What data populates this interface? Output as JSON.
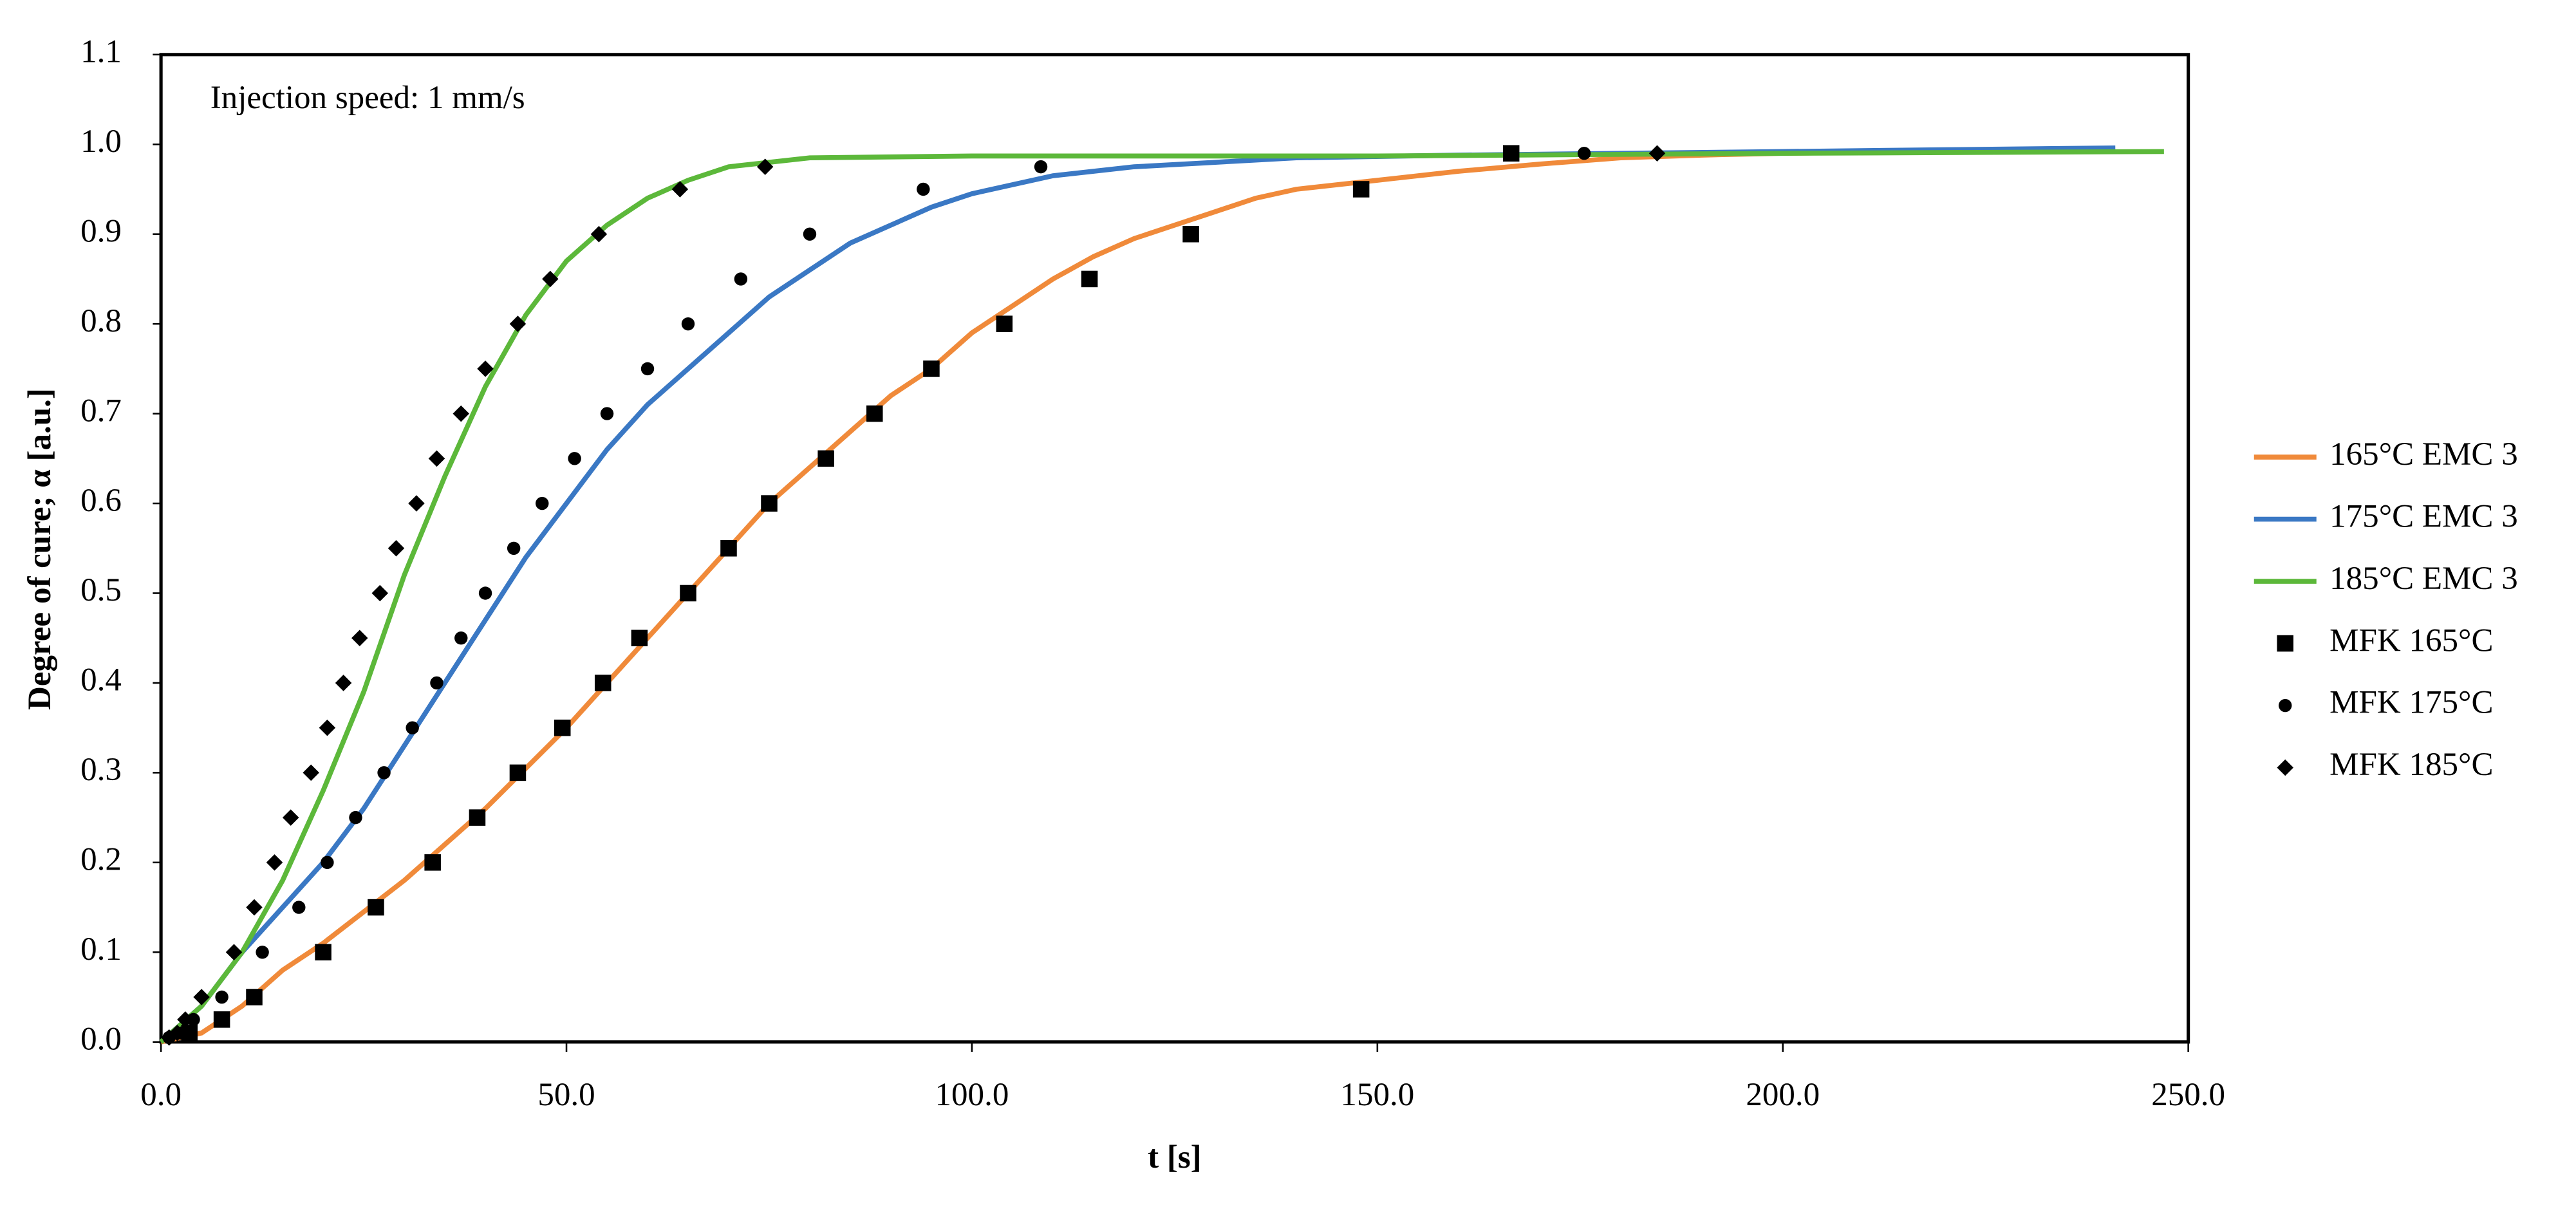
{
  "chart_data": {
    "type": "line",
    "annotation": "Injection speed: 1 mm/s",
    "xlabel": "t [s]",
    "ylabel": "Degree of cure; α [a.u.]",
    "xlim": [
      0,
      250
    ],
    "ylim": [
      0,
      1.1
    ],
    "xticks": [
      {
        "value": 0,
        "label": "0.0"
      },
      {
        "value": 50,
        "label": "50.0"
      },
      {
        "value": 100,
        "label": "100.0"
      },
      {
        "value": 150,
        "label": "150.0"
      },
      {
        "value": 200,
        "label": "200.0"
      },
      {
        "value": 250,
        "label": "250.0"
      }
    ],
    "yticks": [
      {
        "value": 0,
        "label": "0.0"
      },
      {
        "value": 0.1,
        "label": "0.1"
      },
      {
        "value": 0.2,
        "label": "0.2"
      },
      {
        "value": 0.3,
        "label": "0.3"
      },
      {
        "value": 0.4,
        "label": "0.4"
      },
      {
        "value": 0.5,
        "label": "0.5"
      },
      {
        "value": 0.6,
        "label": "0.6"
      },
      {
        "value": 0.7,
        "label": "0.7"
      },
      {
        "value": 0.8,
        "label": "0.8"
      },
      {
        "value": 0.9,
        "label": "0.9"
      },
      {
        "value": 1,
        "label": "1.0"
      },
      {
        "value": 1.1,
        "label": "1.1"
      }
    ],
    "legend": "right",
    "series": [
      {
        "name": "165°C EMC 3",
        "color": "#f08a3a",
        "mode": "line",
        "x": [
          0,
          5,
          10,
          15,
          20,
          25,
          30,
          35,
          40,
          45,
          50,
          55,
          60,
          65,
          70,
          75,
          80,
          85,
          90,
          95,
          100,
          105,
          110,
          115,
          120,
          125,
          130,
          135,
          140,
          150,
          160,
          170,
          180,
          190,
          200,
          220,
          240
        ],
        "values": [
          0,
          0.01,
          0.04,
          0.08,
          0.11,
          0.145,
          0.18,
          0.22,
          0.26,
          0.305,
          0.35,
          0.4,
          0.45,
          0.5,
          0.55,
          0.6,
          0.64,
          0.68,
          0.72,
          0.75,
          0.79,
          0.82,
          0.85,
          0.875,
          0.895,
          0.91,
          0.925,
          0.94,
          0.95,
          0.96,
          0.97,
          0.978,
          0.985,
          0.988,
          0.99,
          0.992,
          0.994
        ]
      },
      {
        "name": "175°C EMC 3",
        "color": "#3a78c4",
        "mode": "line",
        "x": [
          0,
          5,
          10,
          15,
          20,
          25,
          30,
          35,
          40,
          45,
          50,
          55,
          60,
          65,
          70,
          75,
          80,
          85,
          90,
          95,
          100,
          110,
          120,
          130,
          140,
          160,
          180,
          200,
          220,
          241
        ],
        "values": [
          0,
          0.04,
          0.1,
          0.15,
          0.2,
          0.26,
          0.33,
          0.4,
          0.47,
          0.54,
          0.6,
          0.66,
          0.71,
          0.75,
          0.79,
          0.83,
          0.86,
          0.89,
          0.91,
          0.93,
          0.945,
          0.965,
          0.975,
          0.98,
          0.985,
          0.988,
          0.99,
          0.992,
          0.994,
          0.996
        ]
      },
      {
        "name": "185°C EMC 3",
        "color": "#5cb83a",
        "mode": "line",
        "x": [
          0,
          5,
          10,
          15,
          20,
          25,
          30,
          35,
          40,
          45,
          50,
          55,
          60,
          65,
          70,
          80,
          100,
          150,
          200,
          247
        ],
        "values": [
          0,
          0.04,
          0.1,
          0.18,
          0.28,
          0.39,
          0.52,
          0.63,
          0.73,
          0.81,
          0.87,
          0.91,
          0.94,
          0.96,
          0.975,
          0.985,
          0.987,
          0.987,
          0.99,
          0.992
        ]
      },
      {
        "name": "MFK 165°C",
        "color": "#000000",
        "mode": "markers",
        "marker": "square",
        "x": [
          3.5,
          7.5,
          11.5,
          20,
          26.5,
          33.5,
          39,
          44,
          49.5,
          54.5,
          59,
          65,
          70,
          75,
          82,
          88,
          95,
          104,
          114.5,
          127,
          148,
          166.5
        ],
        "values": [
          0.01,
          0.025,
          0.05,
          0.1,
          0.15,
          0.2,
          0.25,
          0.3,
          0.35,
          0.4,
          0.45,
          0.5,
          0.55,
          0.6,
          0.65,
          0.7,
          0.75,
          0.8,
          0.85,
          0.9,
          0.95,
          0.99
        ]
      },
      {
        "name": "MFK 175°C",
        "color": "#000000",
        "mode": "markers",
        "marker": "circle",
        "x": [
          1,
          2.5,
          4,
          7.5,
          12.5,
          17,
          20.5,
          24,
          27.5,
          31,
          34,
          37,
          40,
          43.5,
          47,
          51,
          55,
          60,
          65,
          71.5,
          80,
          94,
          108.5,
          175.5
        ],
        "values": [
          0.005,
          0.01,
          0.025,
          0.05,
          0.1,
          0.15,
          0.2,
          0.25,
          0.3,
          0.35,
          0.4,
          0.45,
          0.5,
          0.55,
          0.6,
          0.65,
          0.7,
          0.75,
          0.8,
          0.85,
          0.9,
          0.95,
          0.975,
          0.99
        ]
      },
      {
        "name": "MFK 185°C",
        "color": "#000000",
        "mode": "markers",
        "marker": "diamond",
        "x": [
          1,
          2,
          3,
          5,
          9,
          11.5,
          14,
          16,
          18.5,
          20.5,
          22.5,
          24.5,
          27,
          29,
          31.5,
          34,
          37,
          40,
          44,
          48,
          54,
          64,
          74.5,
          184.5
        ],
        "values": [
          0.005,
          0.01,
          0.025,
          0.05,
          0.1,
          0.15,
          0.2,
          0.25,
          0.3,
          0.35,
          0.4,
          0.45,
          0.5,
          0.55,
          0.6,
          0.65,
          0.7,
          0.75,
          0.8,
          0.85,
          0.9,
          0.95,
          0.975,
          0.99
        ]
      }
    ]
  }
}
